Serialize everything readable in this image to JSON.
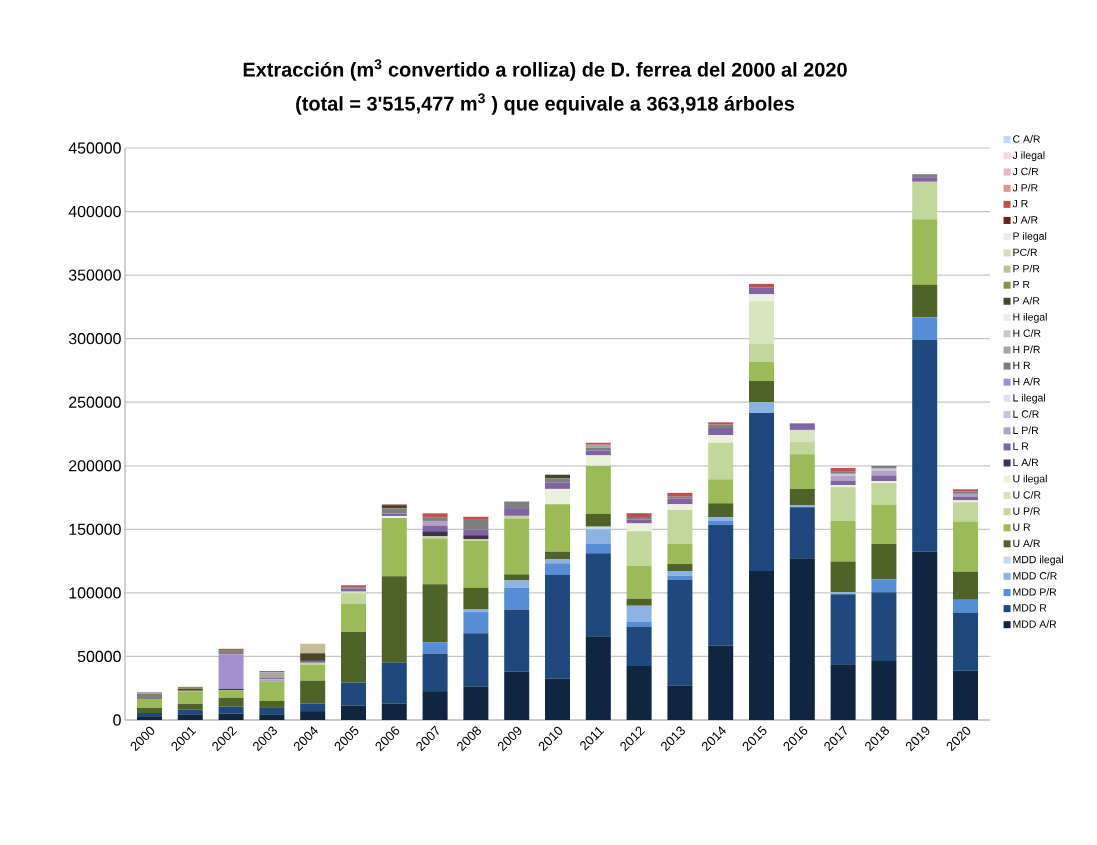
{
  "chart_data": {
    "type": "bar",
    "stacked": true,
    "title": "Extracción  (m$^{3}$ convertido a rolliza) de D. ferrea del 2000 al 2020",
    "subtitle": "(total = 3'515,477 m$^{3}$ ) que equivale a 363,918 árboles",
    "categories": [
      "2000",
      "2001",
      "2002",
      "2003",
      "2004",
      "2005",
      "2006",
      "2007",
      "2008",
      "2009",
      "2010",
      "2011",
      "2012",
      "2013",
      "2014",
      "2015",
      "2016",
      "2017",
      "2018",
      "2019",
      "2020"
    ],
    "ylim": [
      0,
      450000
    ],
    "yticks": [
      0,
      50000,
      100000,
      150000,
      200000,
      250000,
      300000,
      350000,
      400000,
      450000
    ],
    "grid": "y",
    "legend": "right",
    "series": [
      {
        "name": "MDD A/R",
        "color": "#10253f",
        "values": [
          3000,
          4500,
          5000,
          4500,
          7000,
          11500,
          13000,
          22700,
          26400,
          37900,
          32400,
          65800,
          42400,
          27300,
          58500,
          117300,
          127300,
          43900,
          46400,
          132400,
          38800
        ]
      },
      {
        "name": "MDD R",
        "color": "#1f497d",
        "values": [
          2500,
          3600,
          5500,
          5000,
          6000,
          18000,
          32000,
          29700,
          41800,
          49100,
          81800,
          65400,
          31200,
          83300,
          95100,
          124200,
          40000,
          55100,
          54200,
          166700,
          45500
        ]
      },
      {
        "name": "MDD P/R",
        "color": "#558ed5",
        "values": [
          0,
          0,
          0,
          0,
          0,
          0,
          0,
          8800,
          16700,
          17000,
          9100,
          7300,
          3600,
          3000,
          3000,
          0,
          0,
          0,
          10000,
          17600,
          10300
        ]
      },
      {
        "name": "MDD C/R",
        "color": "#8db3e2",
        "values": [
          0,
          0,
          0,
          0,
          0,
          0,
          0,
          0,
          2000,
          5800,
          3000,
          11500,
          12700,
          3600,
          3000,
          8500,
          1500,
          1500,
          0,
          0,
          0
        ]
      },
      {
        "name": "MDD ilegal",
        "color": "#c6d9f1",
        "values": [
          0,
          0,
          0,
          0,
          0,
          0,
          0,
          0,
          0,
          0,
          0,
          2100,
          0,
          0,
          0,
          0,
          0,
          0,
          0,
          0,
          0
        ]
      },
      {
        "name": "U A/R",
        "color": "#4f6228",
        "values": [
          4000,
          4500,
          7000,
          5500,
          18000,
          40000,
          68000,
          45500,
          17000,
          4800,
          6100,
          10000,
          5500,
          5500,
          10900,
          16700,
          13000,
          24200,
          27900,
          25800,
          22100
        ]
      },
      {
        "name": "U R",
        "color": "#9bbb59",
        "values": [
          7000,
          10000,
          6000,
          15000,
          12500,
          22000,
          46000,
          35800,
          37000,
          43900,
          37300,
          37900,
          25800,
          15800,
          18800,
          15200,
          27300,
          32100,
          30600,
          51500,
          39400
        ]
      },
      {
        "name": "U P/R",
        "color": "#c3d69b",
        "values": [
          0,
          0,
          0,
          0,
          1500,
          8000,
          0,
          2000,
          1500,
          2100,
          0,
          0,
          27300,
          26700,
          28800,
          14200,
          9700,
          26400,
          17300,
          29400,
          15200
        ]
      },
      {
        "name": "U C/R",
        "color": "#d7e4bd",
        "values": [
          0,
          0,
          0,
          0,
          0,
          1500,
          0,
          0,
          0,
          0,
          0,
          0,
          0,
          0,
          0,
          33300,
          9400,
          0,
          0,
          0,
          0
        ]
      },
      {
        "name": "U ilegal",
        "color": "#ebf1de",
        "values": [
          0,
          0,
          0,
          0,
          0,
          0,
          1500,
          0,
          0,
          0,
          12100,
          8200,
          6100,
          4500,
          6100,
          5500,
          0,
          1500,
          1500,
          null,
          1500
        ]
      },
      {
        "name": "L A/R",
        "color": "#403152",
        "values": [
          0,
          0,
          1000,
          0,
          0,
          0,
          0,
          4000,
          3000,
          0,
          0,
          0,
          0,
          0,
          0,
          0,
          0,
          0,
          0,
          0,
          0
        ]
      },
      {
        "name": "L R",
        "color": "#8064a2",
        "values": [
          0,
          0,
          0,
          0,
          1500,
          2500,
          2000,
          4500,
          4500,
          6100,
          5200,
          3900,
          3000,
          4500,
          5500,
          5200,
          5200,
          3600,
          4500,
          3600,
          3000
        ]
      },
      {
        "name": "L P/R",
        "color": "#b3a2c7",
        "values": [
          0,
          0,
          0,
          2000,
          0,
          0,
          0,
          3600,
          0,
          0,
          0,
          0,
          0,
          0,
          0,
          0,
          0,
          3900,
          3600,
          0,
          2100
        ]
      },
      {
        "name": "L C/R",
        "color": "#ccc1da",
        "values": [
          0,
          0,
          0,
          0,
          0,
          0,
          0,
          0,
          0,
          0,
          0,
          0,
          0,
          0,
          0,
          0,
          0,
          1500,
          1800,
          0,
          0
        ]
      },
      {
        "name": "L ilegal",
        "color": "#e5e0ec",
        "values": [
          0,
          0,
          0,
          0,
          0,
          0,
          0,
          0,
          0,
          0,
          0,
          0,
          0,
          0,
          0,
          0,
          0,
          0,
          0,
          0,
          0
        ]
      },
      {
        "name": "H A/R",
        "color": "#a58fd0",
        "values": [
          0,
          0,
          27000,
          0,
          0,
          0,
          0,
          0,
          0,
          0,
          0,
          0,
          0,
          0,
          0,
          0,
          0,
          0,
          0,
          0,
          0
        ]
      },
      {
        "name": "H R",
        "color": "#7f7f7f",
        "values": [
          4000,
          1000,
          3500,
          1500,
          0,
          1000,
          4000,
          3000,
          8200,
          5200,
          3000,
          2100,
          2100,
          1500,
          2700,
          0,
          0,
          2100,
          2100,
          2400,
          1800
        ]
      },
      {
        "name": "H P/R",
        "color": "#a6a6a6",
        "values": [
          1500,
          0,
          0,
          4000,
          0,
          0,
          0,
          0,
          0,
          0,
          0,
          2400,
          0,
          0,
          0,
          0,
          0,
          0,
          0,
          0,
          0
        ]
      },
      {
        "name": "H C/R",
        "color": "#c9c9c9",
        "values": [
          0,
          0,
          0,
          0,
          0,
          0,
          0,
          0,
          0,
          0,
          0,
          0,
          0,
          0,
          0,
          0,
          0,
          0,
          0,
          0,
          0
        ]
      },
      {
        "name": "H ilegal",
        "color": "#ededed",
        "values": [
          0,
          0,
          0,
          0,
          0,
          0,
          0,
          0,
          0,
          0,
          0,
          0,
          0,
          0,
          0,
          0,
          0,
          0,
          0,
          0,
          0
        ]
      },
      {
        "name": "P A/R",
        "color": "#4a452a",
        "values": [
          0,
          1000,
          0,
          0,
          6000,
          0,
          2000,
          0,
          0,
          0,
          3000,
          0,
          0,
          0,
          0,
          0,
          0,
          0,
          0,
          0,
          0
        ]
      },
      {
        "name": "P R",
        "color": "#948a54",
        "values": [
          0,
          1500,
          0,
          0,
          0,
          0,
          0,
          0,
          0,
          0,
          0,
          0,
          0,
          0,
          0,
          0,
          0,
          0,
          0,
          0,
          0
        ]
      },
      {
        "name": "P P/R",
        "color": "#c4bd97",
        "values": [
          0,
          0,
          0,
          0,
          7500,
          0,
          0,
          0,
          0,
          0,
          0,
          0,
          0,
          0,
          0,
          0,
          0,
          0,
          0,
          0,
          0
        ]
      },
      {
        "name": "PC/R",
        "color": "#ddd9c3",
        "values": [
          0,
          0,
          0,
          0,
          0,
          0,
          0,
          0,
          0,
          0,
          0,
          0,
          0,
          0,
          0,
          0,
          0,
          0,
          0,
          0,
          0
        ]
      },
      {
        "name": "P ilegal",
        "color": "#eeece1",
        "values": [
          0,
          0,
          0,
          0,
          0,
          0,
          0,
          0,
          0,
          0,
          0,
          0,
          0,
          0,
          0,
          0,
          0,
          0,
          0,
          0,
          0
        ]
      },
      {
        "name": "J A/R",
        "color": "#632423",
        "values": [
          0,
          0,
          0,
          0,
          0,
          0,
          1000,
          0,
          0,
          0,
          0,
          0,
          0,
          0,
          0,
          0,
          0,
          0,
          0,
          0,
          0
        ]
      },
      {
        "name": "J R",
        "color": "#c0504d",
        "values": [
          0,
          0,
          1000,
          1000,
          0,
          1500,
          0,
          3000,
          1800,
          0,
          0,
          1500,
          3000,
          3000,
          1800,
          3000,
          0,
          2400,
          0,
          0,
          1800
        ]
      },
      {
        "name": "J P/R",
        "color": "#d99694",
        "values": [
          0,
          0,
          0,
          0,
          0,
          0,
          0,
          0,
          0,
          0,
          0,
          0,
          0,
          0,
          0,
          0,
          0,
          0,
          0,
          0,
          0
        ]
      },
      {
        "name": "J C/R",
        "color": "#e6b9b8",
        "values": [
          0,
          0,
          0,
          0,
          0,
          0,
          0,
          0,
          0,
          0,
          0,
          0,
          0,
          0,
          0,
          0,
          0,
          0,
          0,
          0,
          0
        ]
      },
      {
        "name": "J ilegal",
        "color": "#f2dcdb",
        "values": [
          0,
          0,
          0,
          0,
          0,
          0,
          0,
          0,
          0,
          0,
          0,
          0,
          0,
          0,
          0,
          0,
          0,
          0,
          0,
          0,
          0
        ]
      },
      {
        "name": "C A/R",
        "color": "#c6d9f1",
        "values": [
          0,
          0,
          0,
          0,
          0,
          0,
          0,
          0,
          0,
          0,
          0,
          0,
          0,
          0,
          0,
          0,
          0,
          0,
          0,
          0,
          0
        ]
      }
    ]
  }
}
